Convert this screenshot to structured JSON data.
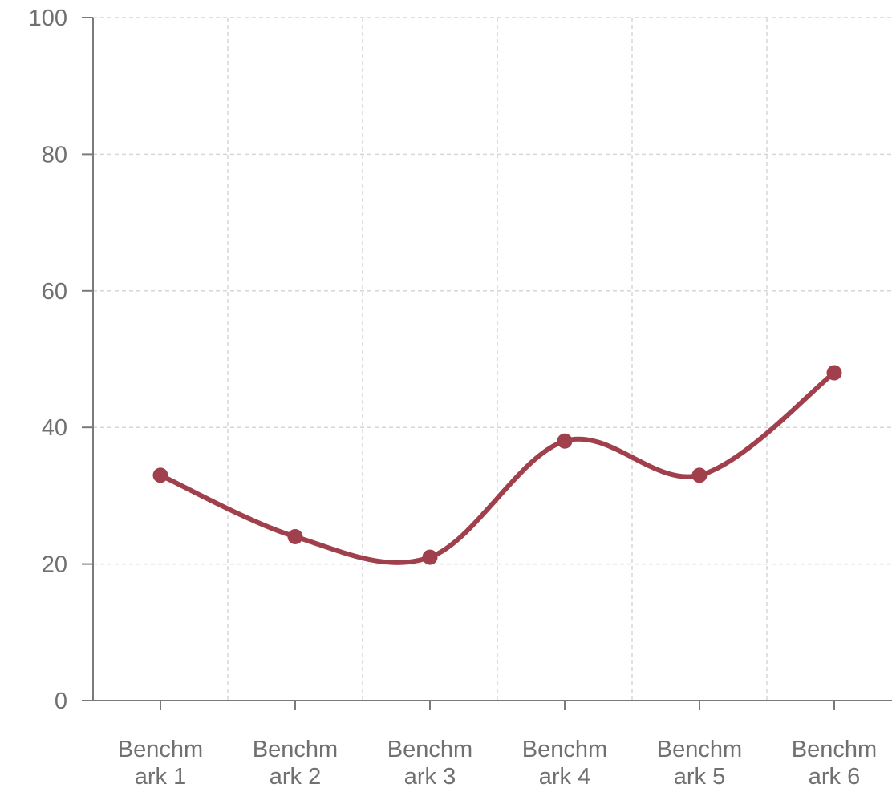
{
  "chart_data": {
    "type": "line",
    "categories": [
      "Benchmark 1",
      "Benchmark 2",
      "Benchmark 3",
      "Benchmark 4",
      "Benchmark 5",
      "Benchmark 6"
    ],
    "category_label_lines": [
      [
        "Benchm",
        "ark 1"
      ],
      [
        "Benchm",
        "ark 2"
      ],
      [
        "Benchm",
        "ark 3"
      ],
      [
        "Benchm",
        "ark 4"
      ],
      [
        "Benchm",
        "ark 5"
      ],
      [
        "Benchm",
        "ark 6"
      ]
    ],
    "series": [
      {
        "values": [
          33,
          24,
          21,
          38,
          33,
          48
        ],
        "color": "#a0404c"
      }
    ],
    "title": "",
    "xlabel": "",
    "ylabel": "",
    "ylim": [
      0,
      100
    ],
    "yticks": [
      0,
      20,
      40,
      60,
      80,
      100
    ],
    "ytick_labels": [
      "0",
      "20",
      "40",
      "60",
      "80",
      "100"
    ],
    "grid": true,
    "smooth": true
  }
}
